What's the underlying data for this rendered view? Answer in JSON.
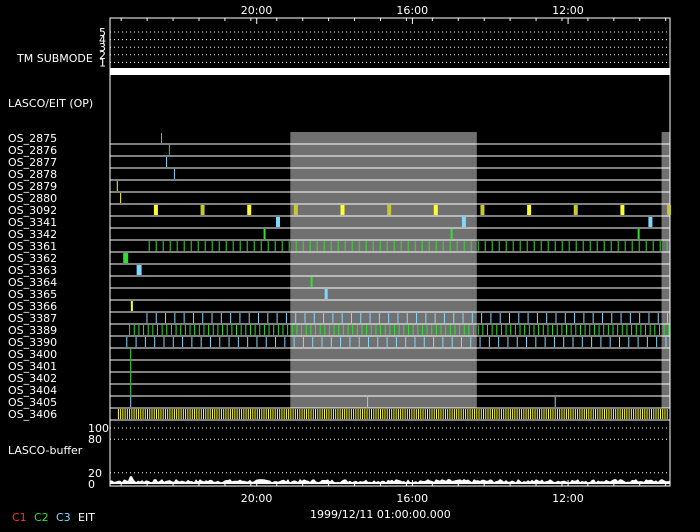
{
  "chart_data": {
    "type": "timeline",
    "time_ticks": [
      "20:00",
      "16:00",
      "12:00"
    ],
    "date_label": "1999/12/11 01:00:00.000",
    "legend": [
      {
        "label": "C1",
        "color": "#ff3030"
      },
      {
        "label": "C2",
        "color": "#30e030"
      },
      {
        "label": "C3",
        "color": "#80d8ff"
      },
      {
        "label": "EIT",
        "color": "#ffffff"
      }
    ],
    "tm_submode": {
      "label": "TM SUBMODE",
      "levels": [
        "5",
        "4",
        "3",
        "2",
        "1"
      ],
      "active_level": 1
    },
    "lasco_eit_label": "LASCO/EIT (OP)",
    "gray_band": {
      "start_fraction": 0.322,
      "end_fraction": 0.655,
      "color": "#707070"
    },
    "right_gray_band": {
      "start_fraction": 0.985,
      "end_fraction": 1.0,
      "color": "#707070"
    },
    "os_rows": [
      {
        "name": "OS_2875",
        "pattern": "single",
        "color": "#30e030",
        "t": 0.092
      },
      {
        "name": "OS_2876",
        "pattern": "single",
        "color": "#30e030",
        "t": 0.106
      },
      {
        "name": "OS_2877",
        "pattern": "single",
        "color": "#80d8ff",
        "t": 0.101
      },
      {
        "name": "OS_2878",
        "pattern": "single",
        "color": "#80d8ff",
        "t": 0.115
      },
      {
        "name": "OS_2879",
        "pattern": "single",
        "color": "#ffff30",
        "t": 0.013
      },
      {
        "name": "OS_2880",
        "pattern": "single",
        "color": "#ffff30",
        "t": 0.019
      },
      {
        "name": "OS_3092",
        "pattern": "periodic",
        "color": "#ffff30",
        "start": 0.082,
        "period": 0.0833,
        "width": 4,
        "alt_color": "#c8c830"
      },
      {
        "name": "OS_3341",
        "pattern": "triple",
        "color": "#80d8ff",
        "times": [
          0.3,
          0.632,
          0.965
        ],
        "width": 4
      },
      {
        "name": "OS_3342",
        "pattern": "triple",
        "color": "#30e030",
        "times": [
          0.276,
          0.61,
          0.944
        ],
        "width": 2
      },
      {
        "name": "OS_3361",
        "pattern": "dense",
        "color": "#30e030",
        "start": 0.07,
        "period": 0.0125,
        "skip_band": true
      },
      {
        "name": "OS_3362",
        "pattern": "single",
        "color": "#30e030",
        "t": 0.028,
        "width": 5
      },
      {
        "name": "OS_3363",
        "pattern": "single",
        "color": "#80d8ff",
        "t": 0.052,
        "width": 5
      },
      {
        "name": "OS_3364",
        "pattern": "single",
        "color": "#30e030",
        "t": 0.36,
        "width": 2
      },
      {
        "name": "OS_3365",
        "pattern": "single",
        "color": "#80d8ff",
        "t": 0.386,
        "width": 3
      },
      {
        "name": "OS_3366",
        "pattern": "single",
        "color": "#ffff30",
        "t": 0.039,
        "width": 2
      },
      {
        "name": "OS_3387",
        "pattern": "dense",
        "color": "#80d8ff",
        "start": 0.066,
        "period": 0.0166
      },
      {
        "name": "OS_3389",
        "pattern": "dense",
        "color": "#30e030",
        "start": 0.035,
        "period": 0.0083
      },
      {
        "name": "OS_3390",
        "pattern": "dense",
        "color": "#80d8ff",
        "start": 0.03,
        "period": 0.0166
      },
      {
        "name": "OS_3400",
        "pattern": "single",
        "color": "#30e030",
        "t": 0.037,
        "width": 1
      },
      {
        "name": "OS_3401",
        "pattern": "single",
        "color": "#30e030",
        "t": 0.037,
        "width": 1
      },
      {
        "name": "OS_3402",
        "pattern": "single",
        "color": "#30e030",
        "t": 0.037,
        "width": 1
      },
      {
        "name": "OS_3404",
        "pattern": "single",
        "color": "#30e030",
        "t": 0.037,
        "width": 1
      },
      {
        "name": "OS_3405",
        "pattern": "triple",
        "color": "#80d8ff",
        "times": [
          0.037,
          0.46,
          0.795
        ],
        "width": 1
      },
      {
        "name": "OS_3406",
        "pattern": "dense",
        "color": "#ffff30",
        "start": 0.015,
        "period": 0.004
      }
    ],
    "buffer": {
      "label": "LASCO-buffer",
      "ticks": [
        "100",
        "80",
        "20",
        "0"
      ],
      "tick_values": [
        100,
        80,
        20,
        0
      ],
      "ylim": [
        0,
        100
      ]
    }
  }
}
